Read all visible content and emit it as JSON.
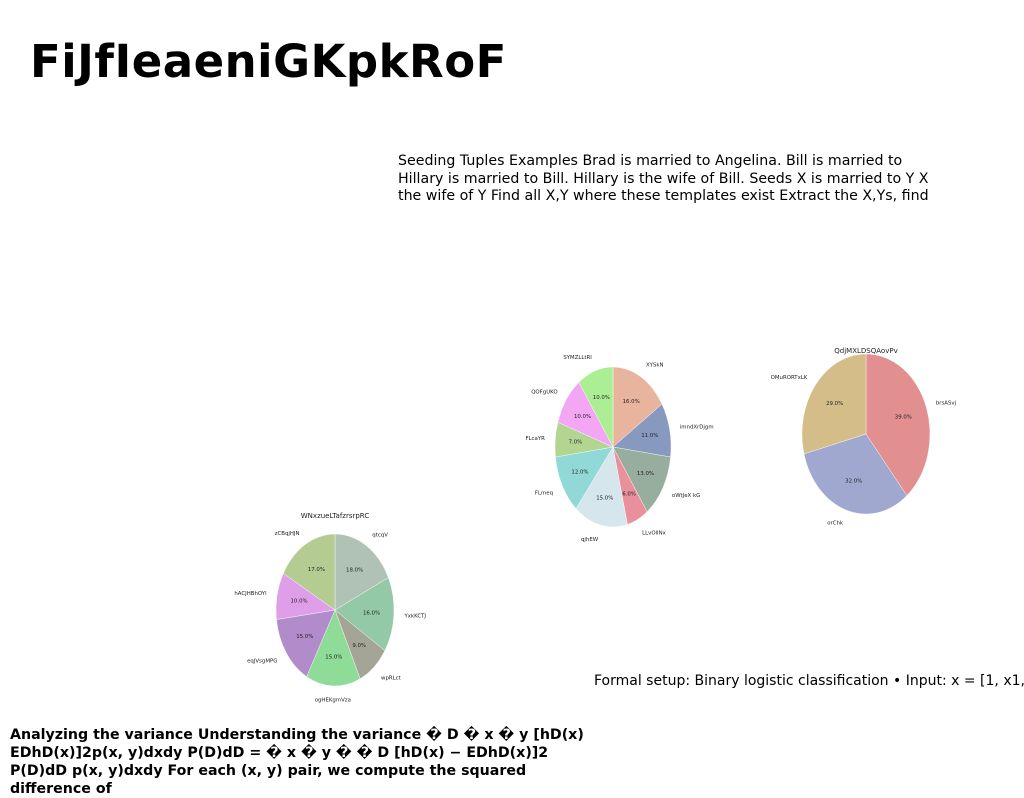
{
  "page": {
    "title": "FiJfIeaeniGKpkRoF",
    "paragraphs": [
      "Seeding Tuples Examples Brad is married to Angelina. Bill is married to Hillary is married to Bill. Hillary is the wife of Bill. Seeds X is married to Y X the wife of Y Find all X,Y where these templates exist Extract the X,Ys, find",
      "Formal setup: Binary logistic classification • Input: x = [1, x1,",
      "Analyzing the variance Understanding the variance � D � x � y [hD(x) EDhD(x)]2p(x, y)dxdy P(D)dD = � x � y � � D [hD(x) − EDhD(x)]2 P(D)dD p(x, y)dxdy For each (x, y) pair, we compute the squared difference of"
    ]
  },
  "chart_data": [
    {
      "type": "pie",
      "title": "WNxzueLTafzrsrpRC",
      "categories": [
        "qtcqV",
        "YxkKCTJ",
        "wpRLct",
        "ogHEKgmVza",
        "eqJVsgMPG",
        "hACJHBhOYl",
        "zCBqjHJN"
      ],
      "values": [
        18.0,
        16.0,
        9.0,
        15.0,
        15.0,
        10.0,
        17.0
      ],
      "labels": [
        "18.0%",
        "16.0%",
        "9.0%",
        "15.0%",
        "15.0%",
        "10.0%",
        "17.0%"
      ],
      "colors": [
        "#afc2b5",
        "#93c9a6",
        "#a5a597",
        "#8fdb98",
        "#b28bcb",
        "#df9ee8",
        "#b4cb92"
      ]
    },
    {
      "type": "pie",
      "title": "",
      "categories": [
        "XYSkN",
        "imndXrDjgm",
        "oWtJeX kG",
        "LLvOlINx",
        "qjhEW",
        "FLmeq",
        "FLcaYR",
        "QOFgUKO",
        "SYMZLLtRI"
      ],
      "values": [
        16.0,
        11.0,
        13.0,
        6.0,
        15.0,
        12.0,
        7.0,
        10.0,
        10.0
      ],
      "labels": [
        "16.0%",
        "11.0%",
        "13.0%",
        "6.0%",
        "15.0%",
        "12.0%",
        "7.0%",
        "10.0%",
        "10.0%"
      ],
      "colors": [
        "#e9b49e",
        "#8899bf",
        "#97ad9e",
        "#e8909b",
        "#d5e7ed",
        "#91d9d7",
        "#b2d592",
        "#f2a6f4",
        "#acee94"
      ]
    },
    {
      "type": "pie",
      "title": "QdjMXLDSQAovPv",
      "categories": [
        "brsASvj",
        "orChk",
        "OMuRORTxLK"
      ],
      "values": [
        39.0,
        32.0,
        29.0
      ],
      "labels": [
        "39.0%",
        "32.0%",
        "29.0%"
      ],
      "colors": [
        "#e28f90",
        "#a0a8cf",
        "#d5bd8a"
      ]
    }
  ]
}
